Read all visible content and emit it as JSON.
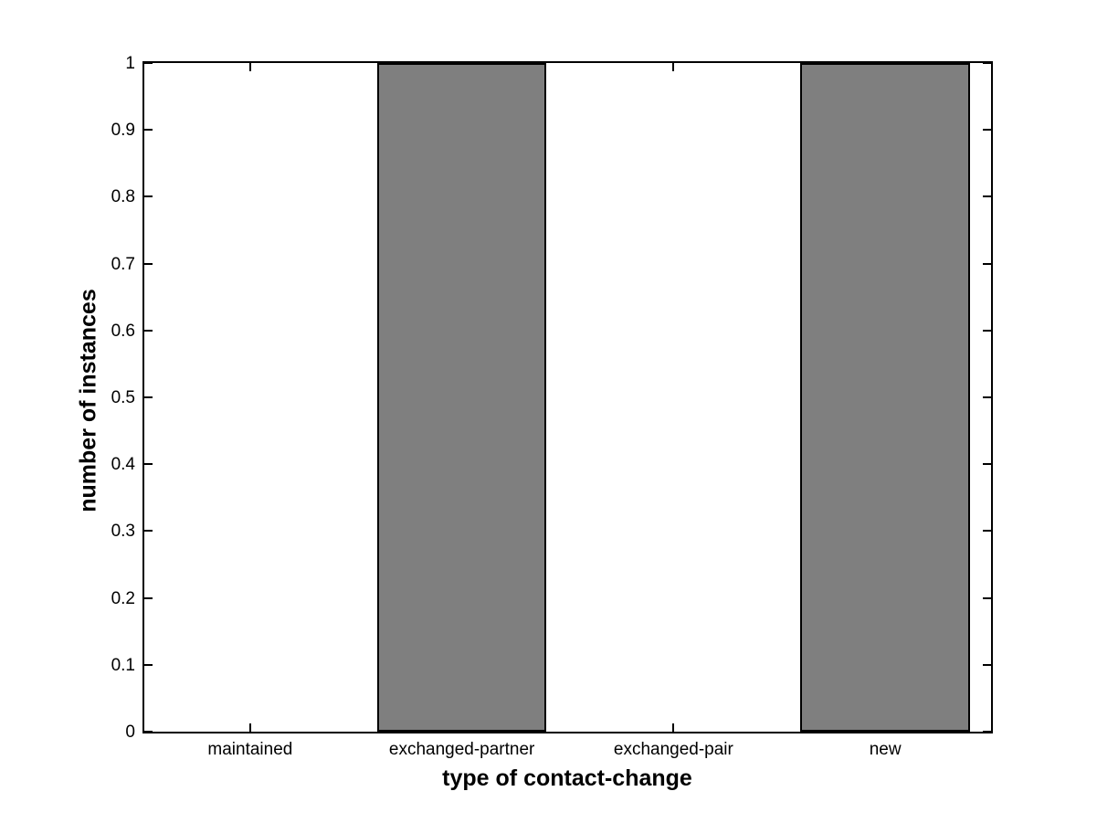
{
  "chart_data": {
    "type": "bar",
    "title": "",
    "xlabel": "type of contact-change",
    "ylabel": "number of instances",
    "categories": [
      "maintained",
      "exchanged-partner",
      "exchanged-pair",
      "new"
    ],
    "values": [
      0,
      1,
      0,
      1
    ],
    "ylim": [
      0,
      1
    ],
    "xlim": [
      0.5,
      4.5
    ],
    "y_ticks": [
      {
        "value": 0,
        "label": "0"
      },
      {
        "value": 0.1,
        "label": "0.1"
      },
      {
        "value": 0.2,
        "label": "0.2"
      },
      {
        "value": 0.3,
        "label": "0.3"
      },
      {
        "value": 0.4,
        "label": "0.4"
      },
      {
        "value": 0.5,
        "label": "0.5"
      },
      {
        "value": 0.6,
        "label": "0.6"
      },
      {
        "value": 0.7,
        "label": "0.7"
      },
      {
        "value": 0.8,
        "label": "0.8"
      },
      {
        "value": 0.9,
        "label": "0.9"
      },
      {
        "value": 1,
        "label": "1"
      }
    ],
    "bar_width_fraction": 0.8,
    "bar_fill_color": "#7f7f7f",
    "bar_edge_color": "#000000",
    "axis_color": "#000000",
    "background_color": "#ffffff",
    "grid": false,
    "legend": null
  }
}
